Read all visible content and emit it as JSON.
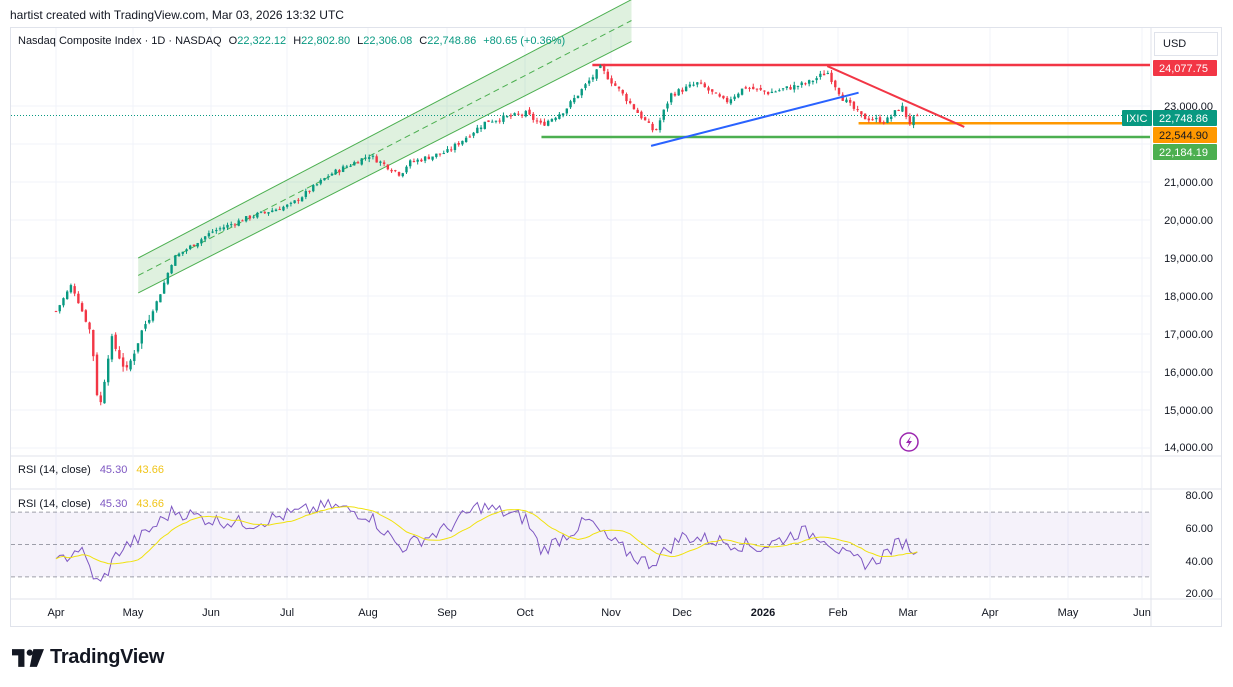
{
  "header": {
    "created_by": "hartist created with TradingView.com, Mar 03, 2026 13:32 UTC"
  },
  "symbol": {
    "title": "Nasdaq Composite Index · 1D · NASDAQ",
    "open_label": "O",
    "open": "22,322.12",
    "high_label": "H",
    "high": "22,802.80",
    "low_label": "L",
    "low": "22,306.08",
    "close_label": "C",
    "close": "22,748.86",
    "change": "+80.65 (+0.36%)"
  },
  "currency": "USD",
  "price_axis": {
    "ticks": [
      "23,000.00",
      "21,000.00",
      "20,000.00",
      "19,000.00",
      "18,000.00",
      "17,000.00",
      "16,000.00",
      "15,000.00",
      "14,000.00"
    ]
  },
  "price_badges": [
    {
      "text": "24,077.75",
      "color": "#f23645"
    },
    {
      "text": "22,748.86",
      "color": "#089981"
    },
    {
      "text": "22,544.90",
      "color": "#ff9800"
    },
    {
      "text": "22,184.19",
      "color": "#4caf50"
    }
  ],
  "ticker_tag": "IXIC",
  "rsi": [
    {
      "label": "RSI (14, close)",
      "value": "45.30",
      "ma": "43.66"
    },
    {
      "label": "RSI (14, close)",
      "value": "45.30",
      "ma": "43.66"
    }
  ],
  "rsi_axis": {
    "ticks": [
      "80.00",
      "60.00",
      "40.00",
      "20.00"
    ]
  },
  "time_axis": {
    "ticks": [
      "Apr",
      "May",
      "Jun",
      "Jul",
      "Aug",
      "Sep",
      "Oct",
      "Nov",
      "Dec",
      "2026",
      "Feb",
      "Mar",
      "Apr",
      "May",
      "Jun"
    ]
  },
  "brand": "TradingView",
  "chart_data": {
    "type": "candlestick",
    "symbol": "Nasdaq Composite Index",
    "interval": "1D",
    "ylim": [
      14000,
      24600
    ],
    "rsi_ylim": [
      20,
      80
    ],
    "rsi_levels": [
      70,
      50,
      30
    ],
    "anchors": [
      {
        "m": 0.0,
        "v": 17600
      },
      {
        "m": 0.2,
        "v": 18300
      },
      {
        "m": 0.45,
        "v": 17000
      },
      {
        "m": 0.55,
        "v": 14900
      },
      {
        "m": 0.7,
        "v": 16900
      },
      {
        "m": 0.9,
        "v": 16000
      },
      {
        "m": 1.1,
        "v": 17100
      },
      {
        "m": 1.3,
        "v": 17900
      },
      {
        "m": 1.5,
        "v": 19000
      },
      {
        "m": 2.0,
        "v": 19700
      },
      {
        "m": 2.5,
        "v": 20100
      },
      {
        "m": 3.0,
        "v": 20400
      },
      {
        "m": 3.5,
        "v": 21200
      },
      {
        "m": 4.0,
        "v": 21700
      },
      {
        "m": 4.4,
        "v": 21200
      },
      {
        "m": 4.5,
        "v": 21500
      },
      {
        "m": 5.0,
        "v": 21800
      },
      {
        "m": 5.5,
        "v": 22600
      },
      {
        "m": 6.0,
        "v": 22800
      },
      {
        "m": 6.2,
        "v": 22500
      },
      {
        "m": 6.5,
        "v": 22900
      },
      {
        "m": 6.95,
        "v": 24000
      },
      {
        "m": 7.2,
        "v": 23400
      },
      {
        "m": 7.4,
        "v": 22900
      },
      {
        "m": 7.65,
        "v": 22300
      },
      {
        "m": 7.85,
        "v": 23300
      },
      {
        "m": 8.2,
        "v": 23600
      },
      {
        "m": 8.55,
        "v": 23100
      },
      {
        "m": 8.8,
        "v": 23500
      },
      {
        "m": 9.1,
        "v": 23350
      },
      {
        "m": 9.6,
        "v": 23600
      },
      {
        "m": 9.85,
        "v": 23900
      },
      {
        "m": 10.05,
        "v": 23200
      },
      {
        "m": 10.3,
        "v": 22700
      },
      {
        "m": 10.6,
        "v": 22600
      },
      {
        "m": 10.8,
        "v": 23000
      },
      {
        "m": 10.9,
        "v": 22550
      },
      {
        "m": 11.0,
        "v": 22748.86
      }
    ],
    "rsi_anchors": [
      {
        "m": 0.0,
        "v": 38
      },
      {
        "m": 0.3,
        "v": 48
      },
      {
        "m": 0.55,
        "v": 24
      },
      {
        "m": 0.8,
        "v": 46
      },
      {
        "m": 1.1,
        "v": 55
      },
      {
        "m": 1.5,
        "v": 71
      },
      {
        "m": 2.0,
        "v": 65
      },
      {
        "m": 2.5,
        "v": 63
      },
      {
        "m": 3.0,
        "v": 69
      },
      {
        "m": 3.5,
        "v": 74
      },
      {
        "m": 4.0,
        "v": 68
      },
      {
        "m": 4.4,
        "v": 48
      },
      {
        "m": 5.0,
        "v": 60
      },
      {
        "m": 5.4,
        "v": 74
      },
      {
        "m": 6.0,
        "v": 66
      },
      {
        "m": 6.2,
        "v": 46
      },
      {
        "m": 6.8,
        "v": 65
      },
      {
        "m": 7.0,
        "v": 55
      },
      {
        "m": 7.4,
        "v": 42
      },
      {
        "m": 7.6,
        "v": 38
      },
      {
        "m": 8.0,
        "v": 55
      },
      {
        "m": 8.5,
        "v": 52
      },
      {
        "m": 9.0,
        "v": 48
      },
      {
        "m": 9.5,
        "v": 58
      },
      {
        "m": 9.8,
        "v": 55
      },
      {
        "m": 10.1,
        "v": 42
      },
      {
        "m": 10.4,
        "v": 38
      },
      {
        "m": 10.8,
        "v": 52
      },
      {
        "m": 11.0,
        "v": 45.3
      }
    ],
    "channel": {
      "m1": 1.05,
      "m2": 7.35,
      "lower1": 18080,
      "lower2": 24700,
      "upper1": 19000,
      "upper2": 25800
    },
    "levels": [
      {
        "name": "resistance",
        "value": 24077.75,
        "color": "#f23645",
        "m1": 6.85,
        "m2": 14.2
      },
      {
        "name": "mid-support",
        "value": 22544.9,
        "color": "#ff9800",
        "m1": 10.25,
        "m2": 14.2
      },
      {
        "name": "support",
        "value": 22184.19,
        "color": "#4caf50",
        "m1": 6.2,
        "m2": 14.2
      }
    ],
    "trendlines": [
      {
        "color": "#2962ff",
        "m1": 7.6,
        "v1": 21950,
        "m2": 10.25,
        "v2": 23350
      },
      {
        "color": "#f23645",
        "m1": 9.85,
        "v1": 24050,
        "m2": 11.6,
        "v2": 22450
      }
    ]
  }
}
